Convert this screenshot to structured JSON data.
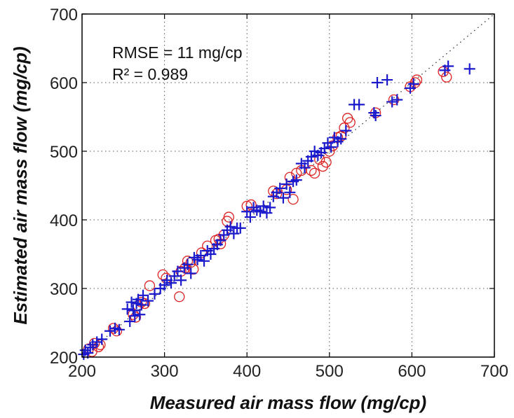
{
  "chart_data": {
    "type": "scatter",
    "title": "",
    "xlabel": "Measured air mass flow (mg/cp)",
    "ylabel": "Estimated air mass flow (mg/cp)",
    "xlim": [
      200,
      700
    ],
    "ylim": [
      200,
      700
    ],
    "xticks": [
      "200",
      "300",
      "400",
      "500",
      "600",
      "700"
    ],
    "yticks": [
      "200",
      "300",
      "400",
      "500",
      "600",
      "700"
    ],
    "grid": true,
    "reference_line": {
      "style": "dotted",
      "from": [
        200,
        200
      ],
      "to": [
        700,
        700
      ]
    },
    "annotations": [
      "RMSE = 11 mg/cp",
      "R² = 0.989"
    ],
    "colors": {
      "circle_series": "#dd2222",
      "plus_series": "#1a1acc"
    },
    "series": [
      {
        "marker": "circle",
        "color": "#dd2222",
        "points": [
          [
            208,
            212
          ],
          [
            212,
            208
          ],
          [
            215,
            220
          ],
          [
            220,
            215
          ],
          [
            222,
            218
          ],
          [
            238,
            242
          ],
          [
            242,
            238
          ],
          [
            262,
            262
          ],
          [
            265,
            258
          ],
          [
            268,
            275
          ],
          [
            272,
            280
          ],
          [
            276,
            278
          ],
          [
            282,
            304
          ],
          [
            298,
            320
          ],
          [
            302,
            315
          ],
          [
            318,
            288
          ],
          [
            320,
            325
          ],
          [
            325,
            330
          ],
          [
            328,
            340
          ],
          [
            332,
            338
          ],
          [
            335,
            328
          ],
          [
            345,
            352
          ],
          [
            352,
            362
          ],
          [
            362,
            370
          ],
          [
            366,
            372
          ],
          [
            368,
            365
          ],
          [
            372,
            378
          ],
          [
            376,
            398
          ],
          [
            378,
            404
          ],
          [
            400,
            420
          ],
          [
            405,
            422
          ],
          [
            432,
            442
          ],
          [
            436,
            438
          ],
          [
            448,
            444
          ],
          [
            452,
            462
          ],
          [
            456,
            430
          ],
          [
            460,
            468
          ],
          [
            466,
            472
          ],
          [
            478,
            472
          ],
          [
            482,
            468
          ],
          [
            488,
            488
          ],
          [
            492,
            478
          ],
          [
            496,
            484
          ],
          [
            500,
            500
          ],
          [
            504,
            508
          ],
          [
            510,
            520
          ],
          [
            514,
            522
          ],
          [
            518,
            534
          ],
          [
            522,
            548
          ],
          [
            525,
            542
          ],
          [
            556,
            556
          ],
          [
            578,
            575
          ],
          [
            598,
            594
          ],
          [
            604,
            600
          ],
          [
            606,
            604
          ],
          [
            638,
            616
          ],
          [
            642,
            608
          ]
        ]
      },
      {
        "marker": "plus",
        "color": "#1a1acc",
        "points": [
          [
            202,
            204
          ],
          [
            204,
            210
          ],
          [
            207,
            206
          ],
          [
            210,
            214
          ],
          [
            213,
            218
          ],
          [
            218,
            222
          ],
          [
            224,
            226
          ],
          [
            234,
            238
          ],
          [
            240,
            242
          ],
          [
            245,
            240
          ],
          [
            255,
            270
          ],
          [
            258,
            252
          ],
          [
            260,
            280
          ],
          [
            262,
            268
          ],
          [
            264,
            260
          ],
          [
            266,
            278
          ],
          [
            268,
            284
          ],
          [
            270,
            262
          ],
          [
            272,
            276
          ],
          [
            274,
            290
          ],
          [
            280,
            282
          ],
          [
            288,
            292
          ],
          [
            295,
            300
          ],
          [
            300,
            305
          ],
          [
            303,
            312
          ],
          [
            308,
            308
          ],
          [
            312,
            318
          ],
          [
            316,
            325
          ],
          [
            320,
            312
          ],
          [
            324,
            330
          ],
          [
            328,
            335
          ],
          [
            332,
            322
          ],
          [
            336,
            345
          ],
          [
            340,
            342
          ],
          [
            344,
            348
          ],
          [
            348,
            340
          ],
          [
            352,
            355
          ],
          [
            356,
            350
          ],
          [
            360,
            358
          ],
          [
            364,
            364
          ],
          [
            368,
            370
          ],
          [
            372,
            378
          ],
          [
            376,
            385
          ],
          [
            380,
            390
          ],
          [
            384,
            380
          ],
          [
            388,
            388
          ],
          [
            392,
            388
          ],
          [
            400,
            412
          ],
          [
            404,
            404
          ],
          [
            408,
            418
          ],
          [
            412,
            414
          ],
          [
            416,
            412
          ],
          [
            420,
            420
          ],
          [
            424,
            410
          ],
          [
            428,
            418
          ],
          [
            432,
            434
          ],
          [
            436,
            440
          ],
          [
            440,
            446
          ],
          [
            444,
            432
          ],
          [
            448,
            452
          ],
          [
            452,
            440
          ],
          [
            456,
            456
          ],
          [
            460,
            458
          ],
          [
            466,
            482
          ],
          [
            470,
            476
          ],
          [
            474,
            486
          ],
          [
            478,
            492
          ],
          [
            482,
            500
          ],
          [
            486,
            494
          ],
          [
            490,
            498
          ],
          [
            494,
            504
          ],
          [
            498,
            512
          ],
          [
            502,
            506
          ],
          [
            506,
            520
          ],
          [
            510,
            514
          ],
          [
            514,
            518
          ],
          [
            520,
            530
          ],
          [
            530,
            568
          ],
          [
            536,
            568
          ],
          [
            554,
            556
          ],
          [
            556,
            552
          ],
          [
            558,
            600
          ],
          [
            570,
            604
          ],
          [
            576,
            572
          ],
          [
            582,
            575
          ],
          [
            598,
            592
          ],
          [
            602,
            598
          ],
          [
            640,
            618
          ],
          [
            644,
            624
          ],
          [
            670,
            620
          ]
        ]
      }
    ]
  }
}
